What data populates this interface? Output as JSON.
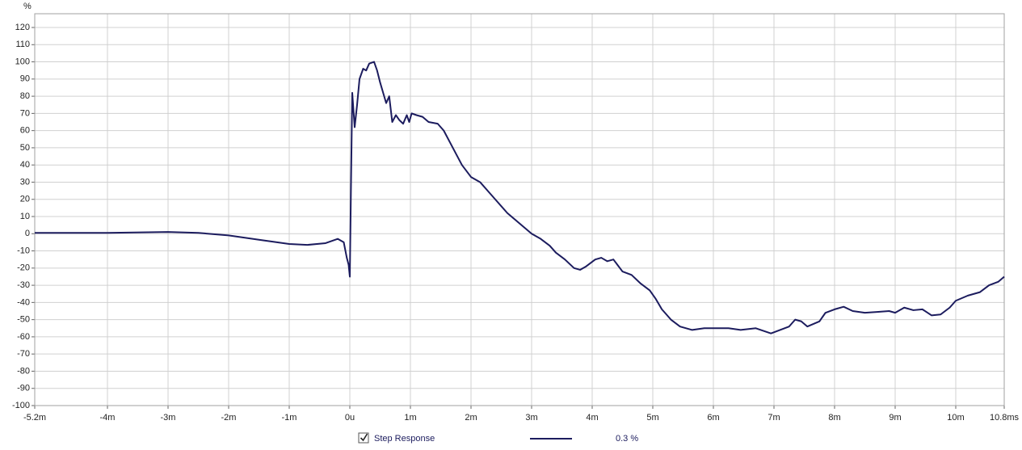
{
  "chart_data": {
    "type": "line",
    "y_unit": "%",
    "xlim": [
      -5.2,
      10.8
    ],
    "ylim": [
      -100,
      128
    ],
    "xticks": [
      {
        "value": -5.2,
        "label": "-5.2m"
      },
      {
        "value": -4,
        "label": "-4m"
      },
      {
        "value": -3,
        "label": "-3m"
      },
      {
        "value": -2,
        "label": "-2m"
      },
      {
        "value": -1,
        "label": "-1m"
      },
      {
        "value": 0,
        "label": "0u"
      },
      {
        "value": 1,
        "label": "1m"
      },
      {
        "value": 2,
        "label": "2m"
      },
      {
        "value": 3,
        "label": "3m"
      },
      {
        "value": 4,
        "label": "4m"
      },
      {
        "value": 5,
        "label": "5m"
      },
      {
        "value": 6,
        "label": "6m"
      },
      {
        "value": 7,
        "label": "7m"
      },
      {
        "value": 8,
        "label": "8m"
      },
      {
        "value": 9,
        "label": "9m"
      },
      {
        "value": 10,
        "label": "10m"
      },
      {
        "value": 10.8,
        "label": "10.8ms"
      }
    ],
    "yticks": [
      -100,
      -90,
      -80,
      -70,
      -60,
      -50,
      -40,
      -30,
      -20,
      -10,
      0,
      10,
      20,
      30,
      40,
      50,
      60,
      70,
      80,
      90,
      100,
      110,
      120
    ],
    "grid": true,
    "smoothing_label": "0.3 %",
    "series": [
      {
        "name": "Step Response",
        "color": "#1c1c5e",
        "x": [
          -5.2,
          -4,
          -3,
          -2.5,
          -2,
          -1.5,
          -1,
          -0.7,
          -0.4,
          -0.2,
          -0.1,
          -0.05,
          -0.02,
          0,
          0.02,
          0.04,
          0.08,
          0.12,
          0.16,
          0.22,
          0.27,
          0.32,
          0.4,
          0.45,
          0.5,
          0.55,
          0.6,
          0.65,
          0.7,
          0.76,
          0.82,
          0.88,
          0.94,
          0.98,
          1.02,
          1.1,
          1.2,
          1.3,
          1.45,
          1.55,
          1.7,
          1.85,
          2,
          2.15,
          2.3,
          2.45,
          2.6,
          2.8,
          3,
          3.15,
          3.3,
          3.4,
          3.55,
          3.7,
          3.8,
          3.9,
          4.05,
          4.15,
          4.25,
          4.35,
          4.5,
          4.65,
          4.8,
          4.95,
          5.05,
          5.15,
          5.3,
          5.45,
          5.65,
          5.85,
          6.05,
          6.25,
          6.45,
          6.7,
          6.95,
          7.1,
          7.25,
          7.35,
          7.45,
          7.55,
          7.75,
          7.85,
          8,
          8.15,
          8.3,
          8.5,
          8.7,
          8.9,
          9,
          9.15,
          9.3,
          9.45,
          9.6,
          9.75,
          9.9,
          10,
          10.2,
          10.4,
          10.55,
          10.7,
          10.8
        ],
        "values": [
          0.5,
          0.5,
          1,
          0.5,
          -1,
          -3.5,
          -6,
          -6.5,
          -5.5,
          -3,
          -5,
          -14,
          -18,
          -25,
          30,
          82,
          62,
          75,
          90,
          96,
          95,
          99,
          100,
          95,
          88,
          82,
          76,
          80,
          65,
          69,
          66,
          64,
          69,
          65,
          70,
          69,
          68,
          65,
          64,
          60,
          50,
          40,
          33,
          30,
          24,
          18,
          12,
          6,
          0,
          -3,
          -7,
          -11,
          -15,
          -20,
          -21,
          -19,
          -15,
          -14,
          -16,
          -15,
          -22,
          -24,
          -29,
          -33,
          -38,
          -44,
          -50,
          -54,
          -56,
          -55,
          -55,
          -55,
          -56,
          -55,
          -58,
          -56,
          -54,
          -50,
          -51,
          -54,
          -51,
          -46,
          -44,
          -42.5,
          -45,
          -46,
          -45.5,
          -45,
          -46,
          -43,
          -44.5,
          -44,
          -47.5,
          -47,
          -43,
          -39,
          -36,
          -34,
          -30,
          -28,
          -25
        ]
      }
    ]
  }
}
